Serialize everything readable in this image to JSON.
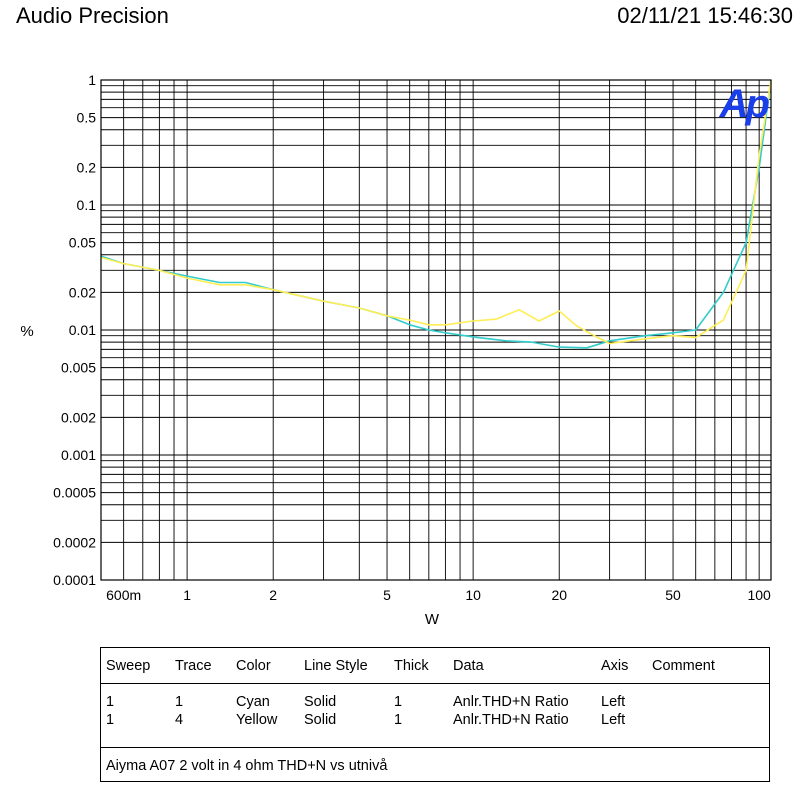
{
  "header": {
    "brand": "Audio Precision",
    "timestamp": "02/11/21 15:46:30"
  },
  "logo_text": "Ap",
  "chart_data": {
    "type": "line",
    "xscale": "log",
    "yscale": "log",
    "xlim": [
      0.5,
      110
    ],
    "ylim": [
      0.0001,
      1
    ],
    "xlabel": "W",
    "ylabel": "%",
    "grid": true,
    "x_ticks": [
      {
        "v": 0.6,
        "label": "600m"
      },
      {
        "v": 1,
        "label": "1"
      },
      {
        "v": 2,
        "label": "2"
      },
      {
        "v": 5,
        "label": "5"
      },
      {
        "v": 10,
        "label": "10"
      },
      {
        "v": 20,
        "label": "20"
      },
      {
        "v": 50,
        "label": "50"
      },
      {
        "v": 100,
        "label": "100"
      }
    ],
    "y_ticks": [
      {
        "v": 1,
        "label": "1"
      },
      {
        "v": 0.5,
        "label": "0.5"
      },
      {
        "v": 0.2,
        "label": "0.2"
      },
      {
        "v": 0.1,
        "label": "0.1"
      },
      {
        "v": 0.05,
        "label": "0.05"
      },
      {
        "v": 0.02,
        "label": "0.02"
      },
      {
        "v": 0.01,
        "label": "0.01"
      },
      {
        "v": 0.005,
        "label": "0.005"
      },
      {
        "v": 0.002,
        "label": "0.002"
      },
      {
        "v": 0.001,
        "label": "0.001"
      },
      {
        "v": 0.0005,
        "label": "0.0005"
      },
      {
        "v": 0.0002,
        "label": "0.0002"
      },
      {
        "v": 0.0001,
        "label": "0.0001"
      }
    ],
    "series": [
      {
        "color": "#33cccc",
        "x": [
          0.5,
          0.6,
          0.8,
          1.0,
          1.3,
          1.6,
          2.0,
          3.0,
          4.0,
          5.0,
          6.0,
          7.0,
          8.0,
          10.0,
          13.0,
          16.0,
          20.0,
          25.0,
          30.0,
          40.0,
          50.0,
          60.0,
          75.0,
          90.0,
          100.0,
          110.0
        ],
        "y": [
          0.039,
          0.034,
          0.03,
          0.027,
          0.024,
          0.024,
          0.021,
          0.017,
          0.015,
          0.013,
          0.011,
          0.01,
          0.0095,
          0.0088,
          0.0082,
          0.008,
          0.0073,
          0.0072,
          0.0082,
          0.009,
          0.0095,
          0.01,
          0.02,
          0.05,
          0.2,
          1.0
        ]
      },
      {
        "color": "#ffee55",
        "x": [
          0.5,
          0.6,
          0.8,
          1.0,
          1.3,
          1.6,
          2.0,
          3.0,
          4.0,
          5.0,
          6.0,
          7.0,
          8.0,
          10.0,
          12.0,
          14.5,
          17.0,
          20.0,
          23.0,
          27.0,
          30.0,
          40.0,
          50.0,
          60.0,
          75.0,
          90.0,
          100.0,
          110.0
        ],
        "y": [
          0.038,
          0.034,
          0.03,
          0.026,
          0.023,
          0.023,
          0.021,
          0.017,
          0.015,
          0.013,
          0.012,
          0.011,
          0.011,
          0.0118,
          0.0122,
          0.0145,
          0.0118,
          0.0142,
          0.0108,
          0.0088,
          0.0078,
          0.0085,
          0.009,
          0.0087,
          0.012,
          0.03,
          0.25,
          1.0
        ]
      }
    ]
  },
  "legend": {
    "headers": [
      "Sweep",
      "Trace",
      "Color",
      "Line Style",
      "Thick",
      "Data",
      "Axis",
      "Comment"
    ],
    "rows": [
      [
        "1",
        "1",
        "Cyan",
        "Solid",
        "1",
        "Anlr.THD+N Ratio",
        "Left",
        ""
      ],
      [
        "1",
        "4",
        "Yellow",
        "Solid",
        "1",
        "Anlr.THD+N Ratio",
        "Left",
        ""
      ]
    ],
    "comment": "Aiyma A07 2 volt in 4 ohm THD+N vs utnivå"
  }
}
